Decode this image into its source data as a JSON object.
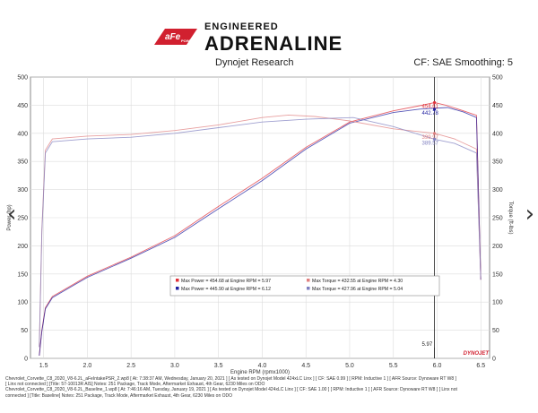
{
  "logo": {
    "badge_text": "aFe",
    "badge_subtext": "POWER",
    "tagline": "ENGINEERED",
    "wordmark": "ADRENALINE",
    "brand_color": "#d1202f"
  },
  "header": {
    "left": "Dynojet Research",
    "right": "CF: SAE Smoothing: 5"
  },
  "chart_data": {
    "type": "line",
    "xlabel": "Engine RPM (rpmx1000)",
    "ylabel_left": "Power (hp)",
    "ylabel_right": "Torque (ft-lbs)",
    "xlim": [
      1.35,
      6.6
    ],
    "ylim": [
      0,
      500
    ],
    "x_ticks": [
      "1.5",
      "2.0",
      "2.5",
      "3.0",
      "3.5",
      "4.0",
      "4.5",
      "5.0",
      "5.5",
      "6.0",
      "6.5"
    ],
    "y_ticks": [
      "0",
      "50",
      "100",
      "150",
      "200",
      "250",
      "300",
      "350",
      "400",
      "450",
      "500"
    ],
    "grid": true,
    "cursor": {
      "x": 5.97,
      "label": "5.97"
    },
    "series": [
      {
        "name": "Max Power = 454.68 at Engine RPM = 5.97",
        "color": "#e0303a",
        "x": [
          1.45,
          1.48,
          1.52,
          1.6,
          1.8,
          2.0,
          2.5,
          3.0,
          3.5,
          4.0,
          4.5,
          5.0,
          5.5,
          5.8,
          5.97,
          6.1,
          6.3,
          6.45,
          6.5
        ],
        "y": [
          5,
          50,
          90,
          110,
          128,
          146,
          180,
          218,
          270,
          320,
          375,
          420,
          440,
          449,
          454.68,
          450,
          440,
          432,
          140
        ]
      },
      {
        "name": "Max Power = 445.90 at Engine RPM = 6.12",
        "color": "#2020a0",
        "x": [
          1.45,
          1.48,
          1.52,
          1.6,
          1.8,
          2.0,
          2.5,
          3.0,
          3.5,
          4.0,
          4.5,
          5.0,
          5.5,
          5.8,
          6.12,
          6.3,
          6.45,
          6.5
        ],
        "y": [
          5,
          48,
          88,
          108,
          126,
          144,
          178,
          215,
          266,
          316,
          372,
          418,
          437,
          443,
          445.9,
          438,
          428,
          140
        ]
      },
      {
        "name": "Max Torque = 432.55 at Engine RPM = 4.30",
        "color": "#e08080",
        "x": [
          1.45,
          1.48,
          1.52,
          1.6,
          2.0,
          2.5,
          3.0,
          3.5,
          4.0,
          4.3,
          4.6,
          5.0,
          5.5,
          5.97,
          6.2,
          6.45,
          6.5
        ],
        "y": [
          20,
          230,
          370,
          390,
          395,
          398,
          405,
          415,
          428,
          432.55,
          430,
          422,
          408,
          399.97,
          390,
          372,
          140
        ]
      },
      {
        "name": "Max Torque = 427.96 at Engine RPM = 5.04",
        "color": "#8080c0",
        "x": [
          1.45,
          1.48,
          1.52,
          1.6,
          2.0,
          2.5,
          3.0,
          3.5,
          4.0,
          4.5,
          5.04,
          5.5,
          5.97,
          6.2,
          6.45,
          6.5
        ],
        "y": [
          20,
          225,
          365,
          385,
          390,
          393,
          400,
          410,
          420,
          425,
          427.96,
          412,
          389.57,
          382,
          365,
          140
        ]
      }
    ],
    "annotations": [
      {
        "text": "454.61",
        "x": 5.97,
        "y": 454.61,
        "color": "#e0303a"
      },
      {
        "text": "442.78",
        "x": 5.97,
        "y": 442.78,
        "color": "#2020a0"
      },
      {
        "text": "399.97",
        "x": 5.97,
        "y": 399.97,
        "color": "#e08080"
      },
      {
        "text": "389.57",
        "x": 5.97,
        "y": 389.57,
        "color": "#8080c0"
      }
    ],
    "branding": "DYNOJET"
  },
  "footer": {
    "line1": "Chevrolet_Corvette_C8_2020_V8-6.2L_aFeIntakePSR_2.wp8 [ At: 7:38:37 AM, Wednesday, January 20, 2021 ] [ As tested on Dynojet Model 424xLC Linx ] [ CF: SAE 0.99 ] [ RPM: Inductive 1 ] [ AFR Source: Dynoware RT W8 ]",
    "line2": "[ Linx not connected ] [Title: 57-10013R AIS] Notes: 251 Package, Track Mode, Aftermarket Exhaust, 4th Gear, 6230 Miles on ODO",
    "line3": "Chevrolet_Corvette_C8_2020_V8-6.2L_Baseline_1.wp8 [ At: 7:46:16 AM, Tuesday, January 19, 2021 ] [ As tested on Dynojet Model 424xLC Linx ] [ CF: SAE 1.00 ] [ RPM: Inductive 1 ] [ AFR Source: Dynoware RT W8 ] [ Linx not",
    "line4": "connected ] [Title: Baseline] Notes: 251 Package, Track Mode, Aftermarket Exhaust, 4th Gear, 6230 Miles on ODO"
  },
  "nav": {
    "prev_icon": "chevron-left-icon",
    "next_icon": "chevron-right-icon"
  }
}
